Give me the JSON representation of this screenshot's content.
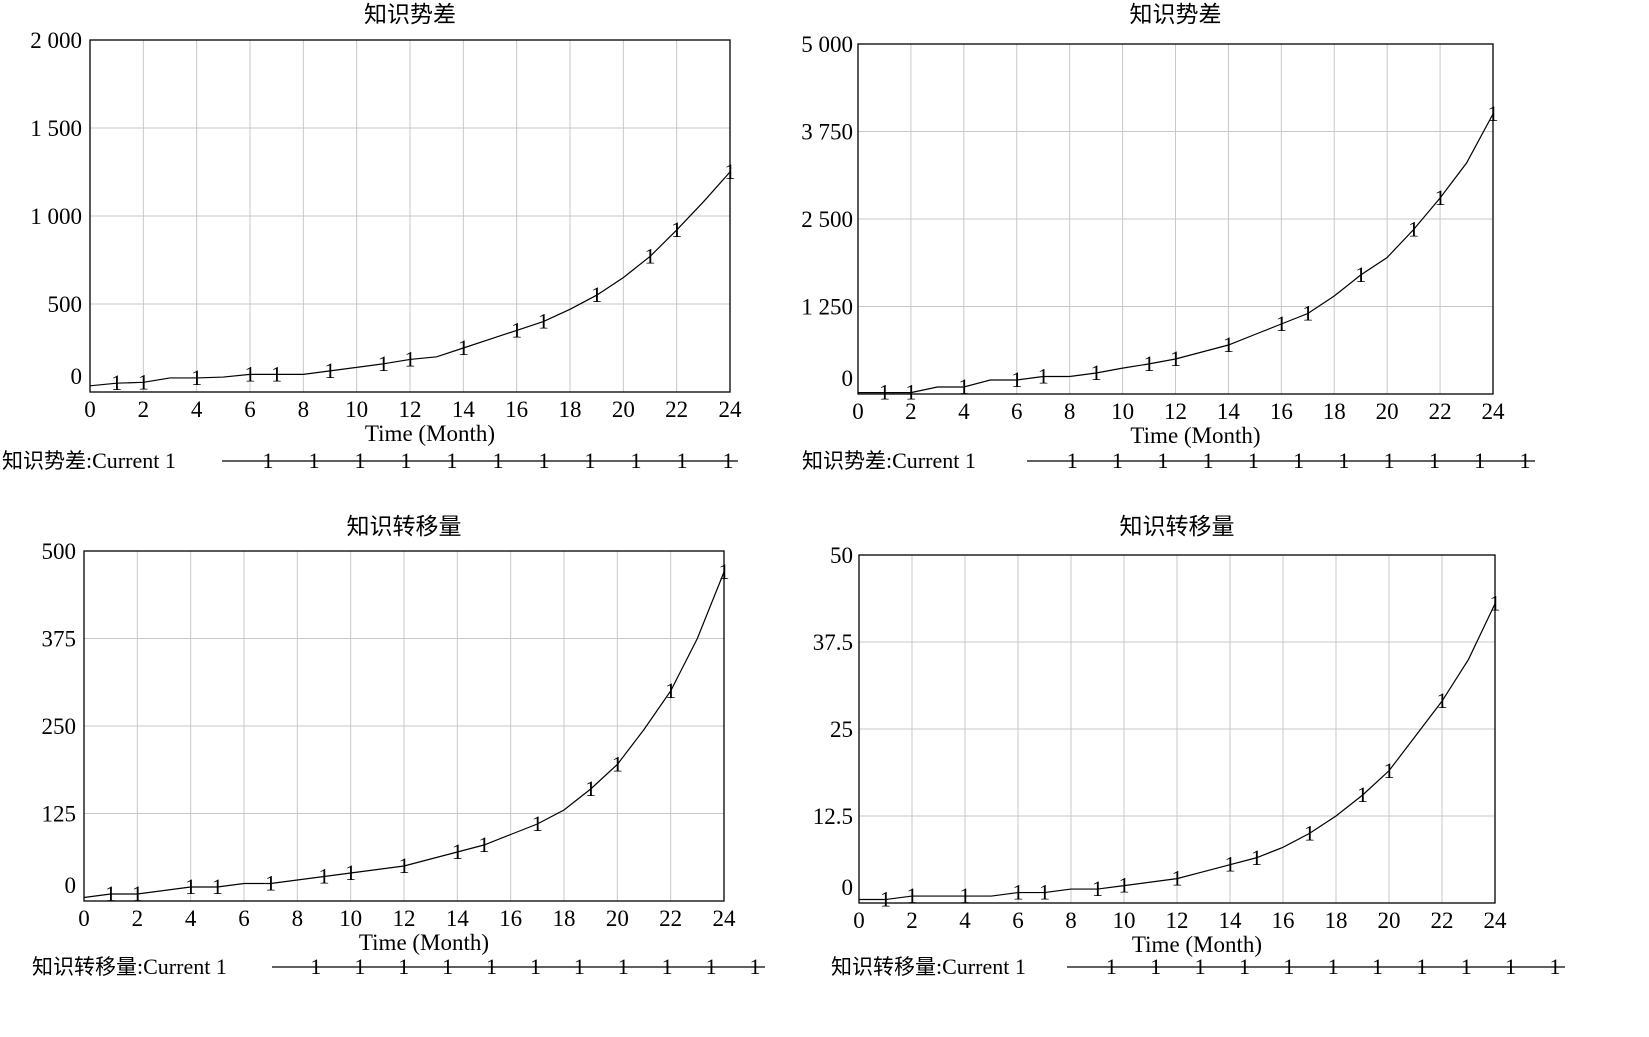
{
  "chart_data": [
    {
      "type": "line",
      "title": "知识势差",
      "xlabel": "Time (Month)",
      "ylabel": "",
      "xlim": [
        0,
        24
      ],
      "ylim": [
        0,
        2000
      ],
      "grid": true,
      "x_ticks": [
        0,
        2,
        4,
        6,
        8,
        10,
        12,
        14,
        16,
        18,
        20,
        22,
        24
      ],
      "y_ticks": [
        0,
        500,
        1000,
        1500,
        2000
      ],
      "y_tick_labels": [
        "0",
        "500",
        "1 000",
        "1 500",
        "2 000"
      ],
      "legend": {
        "variable": "知识势差",
        "separator": ":",
        "run": "Current",
        "marker": "1"
      },
      "series": [
        {
          "x": [
            0,
            1,
            2,
            3,
            4,
            5,
            6,
            7,
            8,
            9,
            10,
            11,
            12,
            13,
            14,
            15,
            16,
            17,
            18,
            19,
            20,
            21,
            22,
            23,
            24
          ],
          "values": [
            35,
            50,
            55,
            80,
            80,
            85,
            100,
            100,
            100,
            120,
            140,
            160,
            185,
            200,
            250,
            300,
            350,
            400,
            470,
            550,
            650,
            770,
            920,
            1080,
            1250
          ],
          "markers_x": [
            1,
            2,
            4,
            6,
            7,
            9,
            11,
            12,
            14,
            16,
            17,
            19,
            21,
            22,
            24
          ]
        }
      ]
    },
    {
      "type": "line",
      "title": "知识势差",
      "xlabel": "Time (Month)",
      "ylabel": "",
      "xlim": [
        0,
        24
      ],
      "ylim": [
        0,
        5000
      ],
      "grid": true,
      "x_ticks": [
        0,
        2,
        4,
        6,
        8,
        10,
        12,
        14,
        16,
        18,
        20,
        22,
        24
      ],
      "y_ticks": [
        0,
        1250,
        2500,
        3750,
        5000
      ],
      "y_tick_labels": [
        "0",
        "1 250",
        "2 500",
        "3 750",
        "5 000"
      ],
      "legend": {
        "variable": "知识势差",
        "separator": ":",
        "run": "Current",
        "marker": "1"
      },
      "series": [
        {
          "x": [
            0,
            1,
            2,
            3,
            4,
            5,
            6,
            7,
            8,
            9,
            10,
            11,
            12,
            13,
            14,
            15,
            16,
            17,
            18,
            19,
            20,
            21,
            22,
            23,
            24
          ],
          "values": [
            20,
            20,
            20,
            100,
            100,
            200,
            200,
            250,
            250,
            300,
            370,
            430,
            500,
            600,
            700,
            850,
            1000,
            1150,
            1400,
            1700,
            1950,
            2350,
            2800,
            3300,
            4000
          ],
          "markers_x": [
            1,
            2,
            4,
            6,
            7,
            9,
            11,
            12,
            14,
            16,
            17,
            19,
            21,
            22,
            24
          ]
        }
      ]
    },
    {
      "type": "line",
      "title": "知识转移量",
      "xlabel": "Time (Month)",
      "ylabel": "",
      "xlim": [
        0,
        24
      ],
      "ylim": [
        0,
        500
      ],
      "grid": true,
      "x_ticks": [
        0,
        2,
        4,
        6,
        8,
        10,
        12,
        14,
        16,
        18,
        20,
        22,
        24
      ],
      "y_ticks": [
        0,
        125,
        250,
        375,
        500
      ],
      "y_tick_labels": [
        "0",
        "125",
        "250",
        "375",
        "500"
      ],
      "legend": {
        "variable": "知识转移量",
        "separator": ":",
        "run": "Current",
        "marker": "1"
      },
      "series": [
        {
          "x": [
            0,
            1,
            2,
            3,
            4,
            5,
            6,
            7,
            8,
            9,
            10,
            11,
            12,
            13,
            14,
            15,
            16,
            17,
            18,
            19,
            20,
            21,
            22,
            23,
            24
          ],
          "values": [
            5,
            10,
            10,
            15,
            20,
            20,
            25,
            25,
            30,
            35,
            40,
            45,
            50,
            60,
            70,
            80,
            95,
            110,
            130,
            160,
            195,
            245,
            300,
            375,
            470
          ],
          "markers_x": [
            1,
            2,
            4,
            5,
            7,
            9,
            10,
            12,
            14,
            15,
            17,
            19,
            20,
            22,
            24
          ]
        }
      ]
    },
    {
      "type": "line",
      "title": "知识转移量",
      "xlabel": "Time (Month)",
      "ylabel": "",
      "xlim": [
        0,
        24
      ],
      "ylim": [
        0,
        50
      ],
      "grid": true,
      "x_ticks": [
        0,
        2,
        4,
        6,
        8,
        10,
        12,
        14,
        16,
        18,
        20,
        22,
        24
      ],
      "y_ticks": [
        0,
        12.5,
        25,
        37.5,
        50
      ],
      "y_tick_labels": [
        "0",
        "12.5",
        "25",
        "37.5",
        "50"
      ],
      "legend": {
        "variable": "知识转移量",
        "separator": ":",
        "run": "Current",
        "marker": "1"
      },
      "series": [
        {
          "x": [
            0,
            1,
            2,
            3,
            4,
            5,
            6,
            7,
            8,
            9,
            10,
            11,
            12,
            13,
            14,
            15,
            16,
            17,
            18,
            19,
            20,
            21,
            22,
            23,
            24
          ],
          "values": [
            0.5,
            0.5,
            1,
            1,
            1,
            1,
            1.5,
            1.5,
            2,
            2,
            2.5,
            3,
            3.5,
            4.5,
            5.5,
            6.5,
            8,
            10,
            12.5,
            15.5,
            19,
            24,
            29,
            35,
            43
          ],
          "markers_x": [
            1,
            2,
            4,
            6,
            7,
            9,
            10,
            12,
            14,
            15,
            17,
            19,
            20,
            22,
            24
          ]
        }
      ]
    }
  ]
}
